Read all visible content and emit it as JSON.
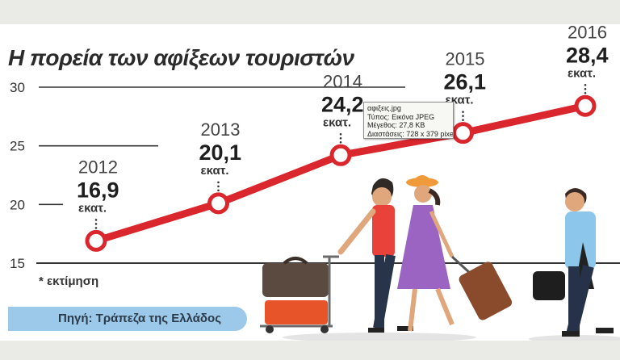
{
  "title": "Η πορεία των αφίξεων τουριστών",
  "footnote": "* εκτίμηση",
  "source": "Πηγή: Τράπεζα της Ελλάδος",
  "tooltip": {
    "line1": "αφιξεις.jpg",
    "line2": "Τύπος: Εικόνα JPEG",
    "line3": "Μέγεθος: 27,8 KB",
    "line4": "Διαστάσεις: 728 x 379 pixel"
  },
  "colors": {
    "line": "#d9272d",
    "marker_fill": "#ffffff",
    "grid": "#333333",
    "source_bar": "#9cc9ea",
    "band": "#eaeae6"
  },
  "chart_data": {
    "type": "line",
    "title": "Η πορεία των αφίξεων τουριστών",
    "xlabel": "",
    "ylabel": "",
    "ylim": [
      15,
      30
    ],
    "yticks": [
      15,
      20,
      25,
      30
    ],
    "grid": "horizontal",
    "unit_label": "εκατ.",
    "value_labels": [
      "16,9",
      "20,1",
      "24,2",
      "26,1",
      "28,4"
    ],
    "series": [
      {
        "x": [
          "2012",
          "2013",
          "2014",
          "2015",
          "2016"
        ],
        "values": [
          16.9,
          20.1,
          24.2,
          26.1,
          28.4
        ]
      }
    ]
  }
}
